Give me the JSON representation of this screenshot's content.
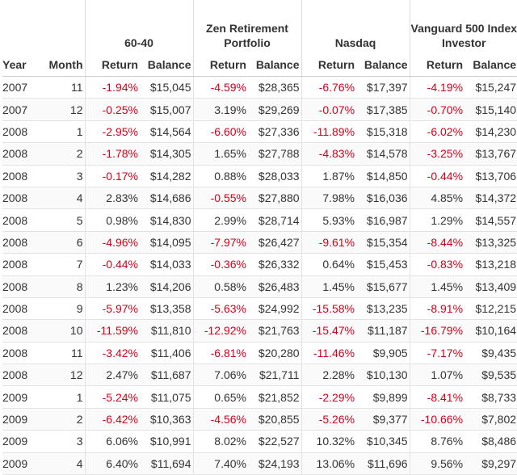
{
  "table": {
    "group_headers": [
      "60-40",
      "Zen Retirement Portfolio",
      "Nasdaq",
      "Vanguard 500 Index Investor"
    ],
    "column_headers": {
      "year": "Year",
      "month": "Month",
      "return": "Return",
      "balance": "Balance"
    },
    "colors": {
      "negative": "#d0021b",
      "text": "#333333"
    },
    "rows": [
      {
        "year": "2007",
        "month": "11",
        "cells": [
          [
            "-1.94%",
            "$15,045"
          ],
          [
            "-4.59%",
            "$28,365"
          ],
          [
            "-6.76%",
            "$17,397"
          ],
          [
            "-4.19%",
            "$15,247"
          ]
        ]
      },
      {
        "year": "2007",
        "month": "12",
        "cells": [
          [
            "-0.25%",
            "$15,007"
          ],
          [
            "3.19%",
            "$29,269"
          ],
          [
            "-0.07%",
            "$17,385"
          ],
          [
            "-0.70%",
            "$15,140"
          ]
        ]
      },
      {
        "year": "2008",
        "month": "1",
        "cells": [
          [
            "-2.95%",
            "$14,564"
          ],
          [
            "-6.60%",
            "$27,336"
          ],
          [
            "-11.89%",
            "$15,318"
          ],
          [
            "-6.02%",
            "$14,230"
          ]
        ]
      },
      {
        "year": "2008",
        "month": "2",
        "cells": [
          [
            "-1.78%",
            "$14,305"
          ],
          [
            "1.65%",
            "$27,788"
          ],
          [
            "-4.83%",
            "$14,578"
          ],
          [
            "-3.25%",
            "$13,767"
          ]
        ]
      },
      {
        "year": "2008",
        "month": "3",
        "cells": [
          [
            "-0.17%",
            "$14,282"
          ],
          [
            "0.88%",
            "$28,033"
          ],
          [
            "1.87%",
            "$14,850"
          ],
          [
            "-0.44%",
            "$13,706"
          ]
        ]
      },
      {
        "year": "2008",
        "month": "4",
        "cells": [
          [
            "2.83%",
            "$14,686"
          ],
          [
            "-0.55%",
            "$27,880"
          ],
          [
            "7.98%",
            "$16,036"
          ],
          [
            "4.85%",
            "$14,372"
          ]
        ]
      },
      {
        "year": "2008",
        "month": "5",
        "cells": [
          [
            "0.98%",
            "$14,830"
          ],
          [
            "2.99%",
            "$28,714"
          ],
          [
            "5.93%",
            "$16,987"
          ],
          [
            "1.29%",
            "$14,557"
          ]
        ]
      },
      {
        "year": "2008",
        "month": "6",
        "cells": [
          [
            "-4.96%",
            "$14,095"
          ],
          [
            "-7.97%",
            "$26,427"
          ],
          [
            "-9.61%",
            "$15,354"
          ],
          [
            "-8.44%",
            "$13,325"
          ]
        ]
      },
      {
        "year": "2008",
        "month": "7",
        "cells": [
          [
            "-0.44%",
            "$14,033"
          ],
          [
            "-0.36%",
            "$26,332"
          ],
          [
            "0.64%",
            "$15,453"
          ],
          [
            "-0.83%",
            "$13,218"
          ]
        ]
      },
      {
        "year": "2008",
        "month": "8",
        "cells": [
          [
            "1.23%",
            "$14,206"
          ],
          [
            "0.58%",
            "$26,483"
          ],
          [
            "1.45%",
            "$15,677"
          ],
          [
            "1.45%",
            "$13,409"
          ]
        ]
      },
      {
        "year": "2008",
        "month": "9",
        "cells": [
          [
            "-5.97%",
            "$13,358"
          ],
          [
            "-5.63%",
            "$24,992"
          ],
          [
            "-15.58%",
            "$13,235"
          ],
          [
            "-8.91%",
            "$12,215"
          ]
        ]
      },
      {
        "year": "2008",
        "month": "10",
        "cells": [
          [
            "-11.59%",
            "$11,810"
          ],
          [
            "-12.92%",
            "$21,763"
          ],
          [
            "-15.47%",
            "$11,187"
          ],
          [
            "-16.79%",
            "$10,164"
          ]
        ]
      },
      {
        "year": "2008",
        "month": "11",
        "cells": [
          [
            "-3.42%",
            "$11,406"
          ],
          [
            "-6.81%",
            "$20,280"
          ],
          [
            "-11.46%",
            "$9,905"
          ],
          [
            "-7.17%",
            "$9,435"
          ]
        ]
      },
      {
        "year": "2008",
        "month": "12",
        "cells": [
          [
            "2.47%",
            "$11,687"
          ],
          [
            "7.06%",
            "$21,711"
          ],
          [
            "2.28%",
            "$10,130"
          ],
          [
            "1.07%",
            "$9,535"
          ]
        ]
      },
      {
        "year": "2009",
        "month": "1",
        "cells": [
          [
            "-5.24%",
            "$11,075"
          ],
          [
            "0.65%",
            "$21,852"
          ],
          [
            "-2.29%",
            "$9,899"
          ],
          [
            "-8.41%",
            "$8,733"
          ]
        ]
      },
      {
        "year": "2009",
        "month": "2",
        "cells": [
          [
            "-6.42%",
            "$10,363"
          ],
          [
            "-4.56%",
            "$20,855"
          ],
          [
            "-5.26%",
            "$9,377"
          ],
          [
            "-10.66%",
            "$7,802"
          ]
        ]
      },
      {
        "year": "2009",
        "month": "3",
        "cells": [
          [
            "6.06%",
            "$10,991"
          ],
          [
            "8.02%",
            "$22,527"
          ],
          [
            "10.32%",
            "$10,345"
          ],
          [
            "8.76%",
            "$8,486"
          ]
        ]
      },
      {
        "year": "2009",
        "month": "4",
        "cells": [
          [
            "6.40%",
            "$11,694"
          ],
          [
            "7.40%",
            "$24,193"
          ],
          [
            "13.06%",
            "$11,696"
          ],
          [
            "9.56%",
            "$9,297"
          ]
        ]
      }
    ]
  }
}
